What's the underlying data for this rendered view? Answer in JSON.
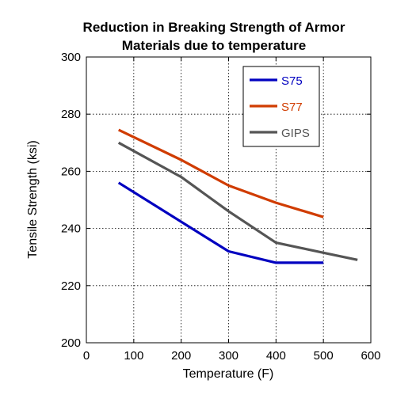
{
  "chart_data": {
    "type": "line",
    "title": [
      "Reduction in Breaking Strength of Armor",
      "Materials due to temperature"
    ],
    "xlabel": "Temperature (F)",
    "ylabel": "Tensile Strength (ksi)",
    "xlim": [
      0,
      600
    ],
    "ylim": [
      200,
      300
    ],
    "xticks": [
      0,
      100,
      200,
      300,
      400,
      500,
      600
    ],
    "yticks": [
      200,
      220,
      240,
      260,
      280,
      300
    ],
    "grid": true,
    "legend_position": "top-right",
    "series": [
      {
        "name": "S75",
        "color": "#0000c0",
        "points": [
          [
            68,
            256
          ],
          [
            300,
            232
          ],
          [
            400,
            228
          ],
          [
            500,
            228
          ]
        ]
      },
      {
        "name": "S77",
        "color": "#d03c00",
        "points": [
          [
            68,
            274.5
          ],
          [
            200,
            264
          ],
          [
            300,
            255
          ],
          [
            400,
            249
          ],
          [
            500,
            244
          ]
        ]
      },
      {
        "name": "GIPS",
        "color": "#555555",
        "points": [
          [
            68,
            270
          ],
          [
            200,
            258
          ],
          [
            300,
            246
          ],
          [
            400,
            235
          ],
          [
            500,
            231.5
          ],
          [
            572,
            229
          ]
        ]
      }
    ]
  }
}
